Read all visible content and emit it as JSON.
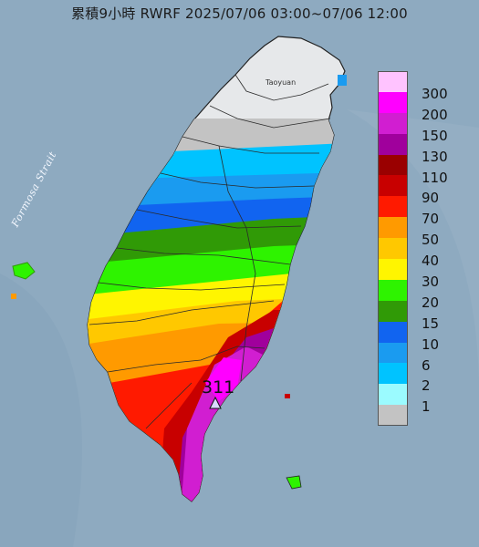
{
  "title": "累積9小時 RWRF 2025/07/06 03:00~07/06 12:00",
  "map": {
    "strait_label": "Formosa Strait",
    "place_label": "Taoyuan",
    "max_value_label": "311",
    "max_marker": "triangle-marker"
  },
  "legend": [
    {
      "label": "300",
      "color": "#ffc3ff"
    },
    {
      "label": "200",
      "color": "#ff00ff"
    },
    {
      "label": "150",
      "color": "#d11ed1"
    },
    {
      "label": "130",
      "color": "#a0009c"
    },
    {
      "label": "110",
      "color": "#9a0000"
    },
    {
      "label": "90",
      "color": "#c80000"
    },
    {
      "label": "70",
      "color": "#ff1a00"
    },
    {
      "label": "50",
      "color": "#ff9a00"
    },
    {
      "label": "40",
      "color": "#ffc800"
    },
    {
      "label": "30",
      "color": "#fff500"
    },
    {
      "label": "20",
      "color": "#2ef300"
    },
    {
      "label": "15",
      "color": "#309a06"
    },
    {
      "label": "10",
      "color": "#1164f0"
    },
    {
      "label": "6",
      "color": "#1a9bf0"
    },
    {
      "label": "2",
      "color": "#00c3ff"
    },
    {
      "label": "1",
      "color": "#9bfbff"
    },
    {
      "label": "",
      "color": "#c3c3c3"
    }
  ]
}
